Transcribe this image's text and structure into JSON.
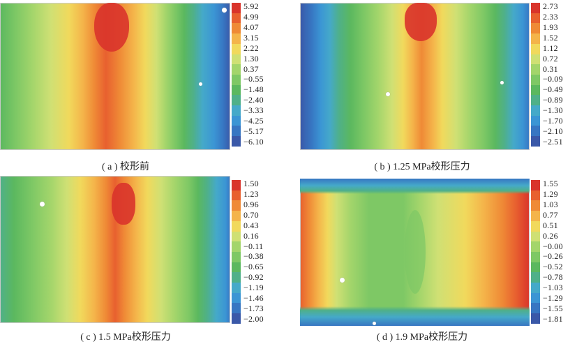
{
  "panels": [
    {
      "caption": "( a ) 校形前",
      "legend": [
        "5.92",
        "4.99",
        "4.07",
        "3.15",
        "2.22",
        "1.30",
        "0.37",
        "−0.55",
        "−1.48",
        "−2.40",
        "−3.33",
        "−4.25",
        "−5.17",
        "−6.10"
      ]
    },
    {
      "caption": "( b ) 1.25 MPa校形压力",
      "legend": [
        "2.73",
        "2.33",
        "1.93",
        "1.52",
        "1.12",
        "0.72",
        "0.31",
        "−0.09",
        "−0.49",
        "−0.89",
        "−1.30",
        "−1.70",
        "−2.10",
        "−2.51"
      ]
    },
    {
      "caption": "( c ) 1.5 MPa校形压力",
      "legend": [
        "1.50",
        "1.23",
        "0.96",
        "0.70",
        "0.43",
        "0.16",
        "−0.11",
        "−0.38",
        "−0.65",
        "−0.92",
        "−1.19",
        "−1.46",
        "−1.73",
        "−2.00"
      ]
    },
    {
      "caption": "( d ) 1.9 MPa校形压力",
      "legend": [
        "1.55",
        "1.29",
        "1.03",
        "0.77",
        "0.51",
        "0.26",
        "−0.00",
        "−0.26",
        "−0.52",
        "−0.78",
        "−1.03",
        "−1.29",
        "−1.55",
        "−1.81"
      ]
    }
  ],
  "colormap": [
    "#d9342b",
    "#e8602f",
    "#ef8a36",
    "#f4b44a",
    "#f1d95c",
    "#cfe074",
    "#a3d56b",
    "#7ec865",
    "#5bb85f",
    "#4fb089",
    "#45a9c9",
    "#3b95d4",
    "#3776c2",
    "#3a58a8"
  ]
}
